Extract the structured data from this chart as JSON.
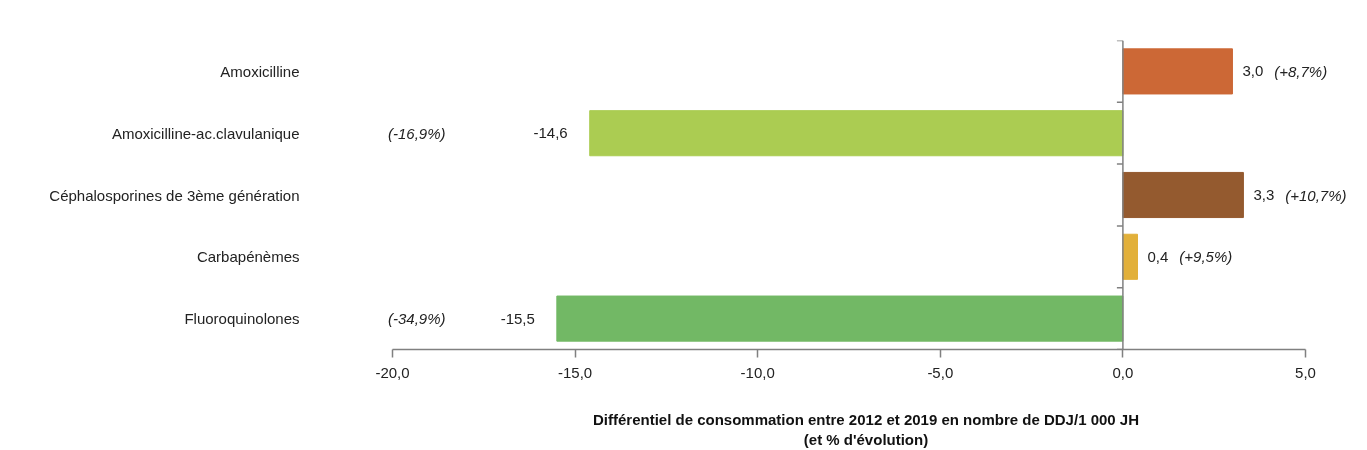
{
  "chart_data": {
    "type": "bar",
    "orientation": "horizontal",
    "categories": [
      "Amoxicilline",
      "Amoxicilline-ac.clavulanique",
      "Céphalosporines de 3ème génération",
      "Carbapénèmes",
      "Fluoroquinolones"
    ],
    "values": [
      3.0,
      -14.6,
      3.3,
      0.4,
      -15.5
    ],
    "colors": [
      "#cc6836",
      "#abcc52",
      "#945a2f",
      "#e2b03a",
      "#72b865"
    ],
    "value_labels": [
      "3,0",
      "-14,6",
      "3,3",
      "0,4",
      "-15,5"
    ],
    "annotations": [
      "(+8,7%)",
      "(-16,9%)",
      "(+10,7%)",
      "(+9,5%)",
      "(-34,9%)"
    ],
    "xlabel": "Différentiel de consommation entre 2012 et 2019 en nombre de DDJ/1 000 JH\n(et % d'évolution)",
    "xlim": [
      -20,
      5
    ],
    "xticks": [
      {
        "value": -20,
        "label": "-20,0"
      },
      {
        "value": -15,
        "label": "-15,0"
      },
      {
        "value": -10,
        "label": "-10,0"
      },
      {
        "value": -5,
        "label": "-5,0"
      },
      {
        "value": 0,
        "label": "0,0"
      },
      {
        "value": 5,
        "label": "5,0"
      }
    ]
  }
}
